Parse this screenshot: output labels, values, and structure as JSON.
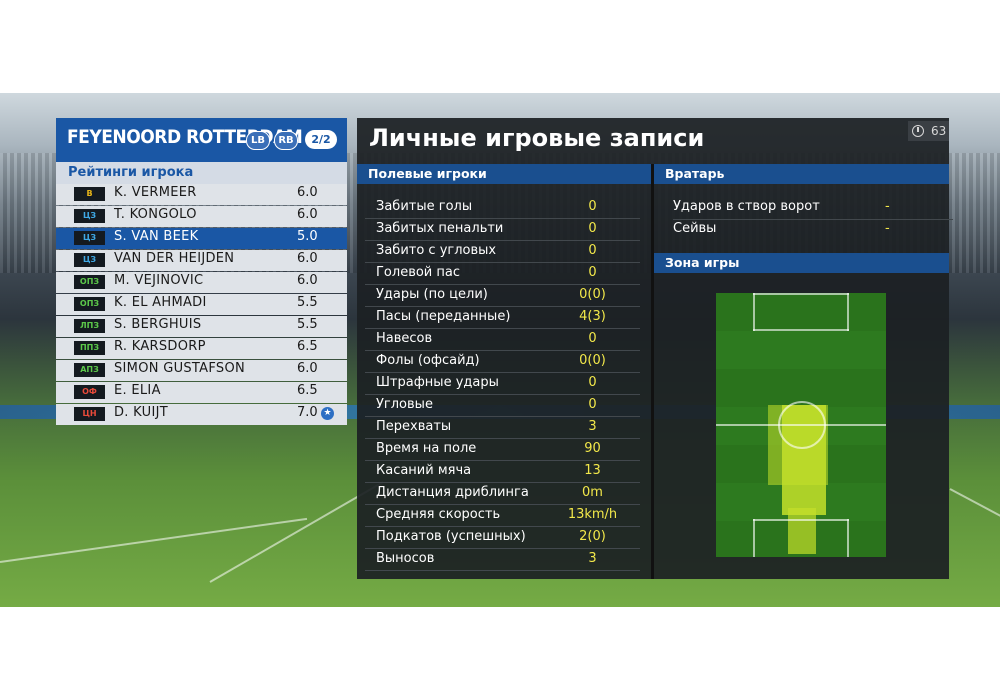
{
  "team": {
    "name": "FEYENOORD ROTTERDAM",
    "pos_left": "LB",
    "pos_right": "RB",
    "page": "2/2"
  },
  "ratings_title": "Рейтинги игрока",
  "players": [
    {
      "pos": "В",
      "pos_color": "#e8b518",
      "name": "K. VERMEER",
      "rating": "6.0"
    },
    {
      "pos": "ЦЗ",
      "pos_color": "#3fa9e6",
      "name": "T. KONGOLO",
      "rating": "6.0"
    },
    {
      "pos": "ЦЗ",
      "pos_color": "#3fa9e6",
      "name": "S. VAN BEEK",
      "rating": "5.0",
      "selected": true
    },
    {
      "pos": "ЦЗ",
      "pos_color": "#3fa9e6",
      "name": "VAN DER HEIJDEN",
      "rating": "6.0"
    },
    {
      "pos": "ОПЗ",
      "pos_color": "#5cc84a",
      "name": "M. VEJINOVIC",
      "rating": "6.0"
    },
    {
      "pos": "ОПЗ",
      "pos_color": "#5cc84a",
      "name": "K. EL AHMADI",
      "rating": "5.5"
    },
    {
      "pos": "ЛПЗ",
      "pos_color": "#5cc84a",
      "name": "S. BERGHUIS",
      "rating": "5.5"
    },
    {
      "pos": "ППЗ",
      "pos_color": "#5cc84a",
      "name": "R. KARSDORP",
      "rating": "6.5"
    },
    {
      "pos": "АПЗ",
      "pos_color": "#5cc84a",
      "name": "SIMON GUSTAFSON",
      "rating": "6.0"
    },
    {
      "pos": "ОФ",
      "pos_color": "#e84a3a",
      "name": "E. ELIA",
      "rating": "6.5"
    },
    {
      "pos": "ЦН",
      "pos_color": "#e84a3a",
      "name": "D. KUIJT",
      "rating": "7.0",
      "star": "★"
    }
  ],
  "records": {
    "title": "Личные игровые записи",
    "timer": "63",
    "field_header": "Полевые игроки",
    "gk_header": "Вратарь",
    "zone_header": "Зона игры",
    "stats": [
      {
        "label": "Забитые голы",
        "value": "0"
      },
      {
        "label": "Забитых пенальти",
        "value": "0"
      },
      {
        "label": "Забито с угловых",
        "value": "0"
      },
      {
        "label": "Голевой пас",
        "value": "0"
      },
      {
        "label": "Удары (по цели)",
        "value": "0(0)"
      },
      {
        "label": "Пасы (переданные)",
        "value": "4(3)"
      },
      {
        "label": "Навесов",
        "value": "0"
      },
      {
        "label": "Фолы (офсайд)",
        "value": "0(0)"
      },
      {
        "label": "Штрафные удары",
        "value": "0"
      },
      {
        "label": "Угловые",
        "value": "0"
      },
      {
        "label": "Перехваты",
        "value": "3"
      },
      {
        "label": "Время на поле",
        "value": "90"
      },
      {
        "label": "Касаний мяча",
        "value": "13"
      },
      {
        "label": "Дистанция дриблинга",
        "value": "0m"
      },
      {
        "label": "Средняя скорость",
        "value": "13km/h"
      },
      {
        "label": "Подкатов (успешных)",
        "value": "2(0)"
      },
      {
        "label": "Выносов",
        "value": "3"
      }
    ],
    "gk_stats": [
      {
        "label": "Ударов в створ ворот",
        "value": "-"
      },
      {
        "label": "Сейвы",
        "value": "-"
      }
    ]
  }
}
